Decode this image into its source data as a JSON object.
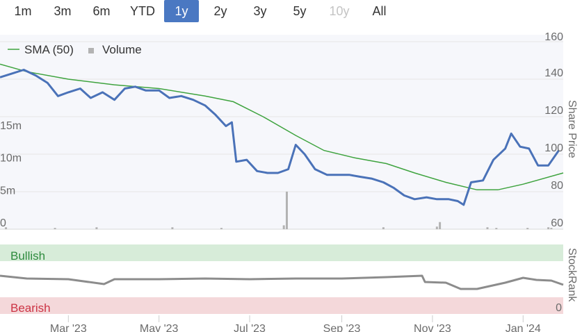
{
  "range_selector": {
    "options": [
      {
        "label": "1m",
        "state": "normal"
      },
      {
        "label": "3m",
        "state": "normal"
      },
      {
        "label": "6m",
        "state": "normal"
      },
      {
        "label": "YTD",
        "state": "normal"
      },
      {
        "label": "1y",
        "state": "active"
      },
      {
        "label": "2y",
        "state": "normal"
      },
      {
        "label": "3y",
        "state": "normal"
      },
      {
        "label": "5y",
        "state": "normal"
      },
      {
        "label": "10y",
        "state": "disabled"
      },
      {
        "label": "All",
        "state": "normal"
      }
    ]
  },
  "colors": {
    "price": "#4a72b8",
    "sma": "#3ea33e",
    "volume": "#b3b3b3",
    "stockrank": "#8c8c8c",
    "bullish_band": "#d7ecd9",
    "bearish_band": "#f4d8da",
    "bullish_text": "#2e8b3e",
    "bearish_text": "#cc3344",
    "active_button": "#4a78c2"
  },
  "chart_data": [
    {
      "type": "line",
      "ylabel": "Share Price",
      "y_ticks": [
        60,
        80,
        100,
        120,
        140,
        160
      ],
      "ylim": [
        60,
        160
      ],
      "x_range": [
        "2023-01-14",
        "2024-01-28"
      ],
      "x_ticks": [
        {
          "date": "2023-03-01",
          "label": "Mar '23"
        },
        {
          "date": "2023-05-01",
          "label": "May '23"
        },
        {
          "date": "2023-07-01",
          "label": "Jul '23"
        },
        {
          "date": "2023-09-01",
          "label": "Sep '23"
        },
        {
          "date": "2023-11-01",
          "label": "Nov '23"
        },
        {
          "date": "2024-01-01",
          "label": "Jan '24"
        }
      ],
      "legend": [
        {
          "name": "SMA (50)",
          "symbol": "line"
        },
        {
          "name": "Volume",
          "symbol": "square"
        }
      ],
      "grid": "horizontal",
      "series": [
        {
          "name": "Share Price",
          "points": [
            [
              "2023-01-14",
              141
            ],
            [
              "2023-01-22",
              143
            ],
            [
              "2023-01-30",
              145
            ],
            [
              "2023-02-07",
              142
            ],
            [
              "2023-02-15",
              138
            ],
            [
              "2023-02-22",
              131
            ],
            [
              "2023-03-01",
              133
            ],
            [
              "2023-03-09",
              135
            ],
            [
              "2023-03-16",
              130
            ],
            [
              "2023-03-24",
              133
            ],
            [
              "2023-04-01",
              129
            ],
            [
              "2023-04-08",
              135
            ],
            [
              "2023-04-15",
              136
            ],
            [
              "2023-04-22",
              134
            ],
            [
              "2023-05-01",
              134
            ],
            [
              "2023-05-08",
              130
            ],
            [
              "2023-05-16",
              131
            ],
            [
              "2023-05-24",
              129
            ],
            [
              "2023-06-01",
              126
            ],
            [
              "2023-06-08",
              121
            ],
            [
              "2023-06-15",
              115
            ],
            [
              "2023-06-19",
              117
            ],
            [
              "2023-06-22",
              96
            ],
            [
              "2023-06-29",
              97
            ],
            [
              "2023-07-06",
              91
            ],
            [
              "2023-07-13",
              90
            ],
            [
              "2023-07-20",
              90
            ],
            [
              "2023-07-27",
              92
            ],
            [
              "2023-08-01",
              105
            ],
            [
              "2023-08-07",
              100
            ],
            [
              "2023-08-14",
              92
            ],
            [
              "2023-08-22",
              89
            ],
            [
              "2023-08-29",
              89
            ],
            [
              "2023-09-06",
              89
            ],
            [
              "2023-09-13",
              88
            ],
            [
              "2023-09-21",
              87
            ],
            [
              "2023-09-29",
              85
            ],
            [
              "2023-10-06",
              82
            ],
            [
              "2023-10-13",
              78
            ],
            [
              "2023-10-20",
              76
            ],
            [
              "2023-10-28",
              77
            ],
            [
              "2023-11-04",
              76
            ],
            [
              "2023-11-12",
              76
            ],
            [
              "2023-11-18",
              75
            ],
            [
              "2023-11-22",
              73
            ],
            [
              "2023-11-27",
              85
            ],
            [
              "2023-12-05",
              86
            ],
            [
              "2023-12-12",
              97
            ],
            [
              "2023-12-20",
              103
            ],
            [
              "2023-12-24",
              111
            ],
            [
              "2023-12-30",
              104
            ],
            [
              "2024-01-05",
              103
            ],
            [
              "2024-01-11",
              94
            ],
            [
              "2024-01-18",
              94
            ],
            [
              "2024-01-25",
              102
            ]
          ]
        },
        {
          "name": "SMA (50)",
          "points": [
            [
              "2023-01-14",
              148
            ],
            [
              "2023-02-01",
              144
            ],
            [
              "2023-03-01",
              140
            ],
            [
              "2023-04-01",
              137
            ],
            [
              "2023-05-01",
              135
            ],
            [
              "2023-06-01",
              131
            ],
            [
              "2023-06-20",
              128
            ],
            [
              "2023-07-10",
              120
            ],
            [
              "2023-08-01",
              110
            ],
            [
              "2023-08-20",
              102
            ],
            [
              "2023-09-10",
              98
            ],
            [
              "2023-10-01",
              95
            ],
            [
              "2023-10-20",
              90
            ],
            [
              "2023-11-10",
              85
            ],
            [
              "2023-12-01",
              81
            ],
            [
              "2023-12-15",
              81
            ],
            [
              "2024-01-01",
              84
            ],
            [
              "2024-01-28",
              90
            ]
          ]
        }
      ]
    },
    {
      "type": "bar",
      "name": "Volume",
      "y_ticks": [
        {
          "value": 0,
          "label": "0"
        },
        {
          "value": 5,
          "label": "5m"
        },
        {
          "value": 10,
          "label": "10m"
        },
        {
          "value": 15,
          "label": "15m"
        }
      ],
      "ylim": [
        0,
        15
      ],
      "unit": "million",
      "bars": [
        [
          "2023-01-18",
          0.3
        ],
        [
          "2023-02-20",
          0.2
        ],
        [
          "2023-03-20",
          0.3
        ],
        [
          "2023-05-10",
          0.3
        ],
        [
          "2023-06-12",
          0.2
        ],
        [
          "2023-07-24",
          0.6
        ],
        [
          "2023-07-26",
          5.8
        ],
        [
          "2023-09-29",
          0.3
        ],
        [
          "2023-11-04",
          0.4
        ],
        [
          "2023-11-06",
          1.1
        ],
        [
          "2023-12-08",
          0.3
        ],
        [
          "2023-12-14",
          0.2
        ],
        [
          "2024-01-04",
          0.2
        ],
        [
          "2024-01-18",
          0.3
        ],
        [
          "2024-01-20",
          0.2
        ]
      ]
    },
    {
      "type": "line",
      "name": "StockRank",
      "ylabel": "StockRank",
      "y_ticks": [
        0
      ],
      "ylim": [
        0,
        100
      ],
      "bands": [
        {
          "label": "Bullish",
          "from": 80,
          "to": 100
        },
        {
          "label": "Bearish",
          "from": 0,
          "to": 20
        }
      ],
      "points": [
        [
          "2023-01-14",
          55
        ],
        [
          "2023-02-01",
          51
        ],
        [
          "2023-03-01",
          50
        ],
        [
          "2023-03-25",
          43
        ],
        [
          "2023-04-01",
          50
        ],
        [
          "2023-05-01",
          50
        ],
        [
          "2023-06-01",
          51
        ],
        [
          "2023-07-01",
          50
        ],
        [
          "2023-08-01",
          51
        ],
        [
          "2023-09-01",
          51
        ],
        [
          "2023-10-01",
          53
        ],
        [
          "2023-10-25",
          55
        ],
        [
          "2023-10-27",
          46
        ],
        [
          "2023-11-10",
          45
        ],
        [
          "2023-11-20",
          36
        ],
        [
          "2023-12-01",
          36
        ],
        [
          "2023-12-20",
          45
        ],
        [
          "2024-01-01",
          52
        ],
        [
          "2024-01-10",
          49
        ],
        [
          "2024-01-20",
          48
        ],
        [
          "2024-01-28",
          42
        ]
      ]
    }
  ]
}
